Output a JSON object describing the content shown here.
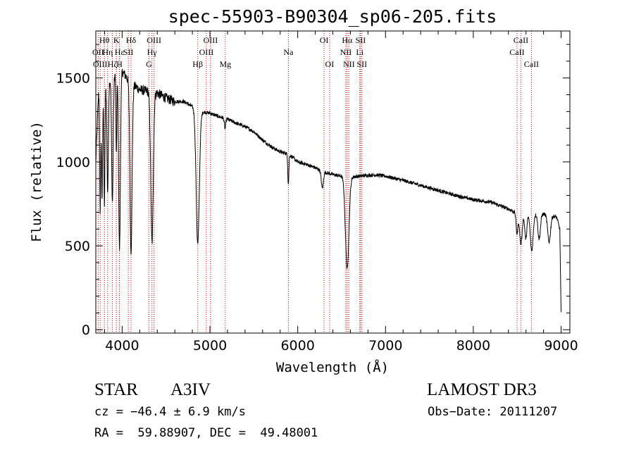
{
  "chart_data": {
    "type": "line",
    "title": "spec-55903-B90304_sp06-205.fits",
    "xlabel": "Wavelength (Å)",
    "ylabel": "Flux (relative)",
    "xlim": [
      3700,
      9100
    ],
    "ylim": [
      -20,
      1780
    ],
    "x_ticks": [
      4000,
      5000,
      6000,
      7000,
      8000,
      9000
    ],
    "y_ticks": [
      0,
      500,
      1000,
      1500
    ],
    "colors": {
      "spectrum": "#000000",
      "marker_lines": "#cc0000",
      "axes": "#000000"
    },
    "series": [
      {
        "name": "spectrum",
        "continuum": [
          [
            3700,
            1000
          ],
          [
            3730,
            1400
          ],
          [
            3800,
            1450
          ],
          [
            3900,
            1520
          ],
          [
            4000,
            1540
          ],
          [
            4100,
            1470
          ],
          [
            4200,
            1430
          ],
          [
            4300,
            1420
          ],
          [
            4400,
            1410
          ],
          [
            4500,
            1380
          ],
          [
            4600,
            1360
          ],
          [
            4700,
            1360
          ],
          [
            4800,
            1330
          ],
          [
            4900,
            1300
          ],
          [
            5000,
            1290
          ],
          [
            5100,
            1270
          ],
          [
            5200,
            1255
          ],
          [
            5300,
            1230
          ],
          [
            5400,
            1210
          ],
          [
            5500,
            1180
          ],
          [
            5600,
            1130
          ],
          [
            5700,
            1090
          ],
          [
            5800,
            1060
          ],
          [
            5900,
            1045
          ],
          [
            6000,
            1000
          ],
          [
            6100,
            985
          ],
          [
            6200,
            965
          ],
          [
            6300,
            940
          ],
          [
            6400,
            925
          ],
          [
            6500,
            915
          ],
          [
            6600,
            910
          ],
          [
            6700,
            915
          ],
          [
            6800,
            920
          ],
          [
            6900,
            922
          ],
          [
            7000,
            915
          ],
          [
            7200,
            890
          ],
          [
            7400,
            860
          ],
          [
            7600,
            830
          ],
          [
            7800,
            800
          ],
          [
            8000,
            775
          ],
          [
            8200,
            760
          ],
          [
            8400,
            720
          ],
          [
            8500,
            690
          ],
          [
            8600,
            690
          ],
          [
            8700,
            690
          ],
          [
            8800,
            690
          ],
          [
            8900,
            680
          ],
          [
            8950,
            670
          ],
          [
            8985,
            600
          ],
          [
            9000,
            100
          ]
        ],
        "absorption_lines": [
          {
            "center": 3750,
            "depth": 700,
            "width": 6
          },
          {
            "center": 3771,
            "depth": 650,
            "width": 6
          },
          {
            "center": 3798,
            "depth": 700,
            "width": 6
          },
          {
            "center": 3835,
            "depth": 650,
            "width": 8
          },
          {
            "center": 3889,
            "depth": 750,
            "width": 9
          },
          {
            "center": 3934,
            "depth": 500,
            "width": 5
          },
          {
            "center": 3970,
            "depth": 1050,
            "width": 10
          },
          {
            "center": 4101,
            "depth": 1000,
            "width": 12
          },
          {
            "center": 4340,
            "depth": 900,
            "width": 14
          },
          {
            "center": 4861,
            "depth": 800,
            "width": 18
          },
          {
            "center": 5172,
            "depth": 60,
            "width": 8
          },
          {
            "center": 5893,
            "depth": 180,
            "width": 6
          },
          {
            "center": 6280,
            "depth": 100,
            "width": 12
          },
          {
            "center": 6563,
            "depth": 550,
            "width": 20
          },
          {
            "center": 8498,
            "depth": 120,
            "width": 10
          },
          {
            "center": 8542,
            "depth": 180,
            "width": 14
          },
          {
            "center": 8598,
            "depth": 150,
            "width": 12
          },
          {
            "center": 8665,
            "depth": 220,
            "width": 16
          },
          {
            "center": 8750,
            "depth": 150,
            "width": 14
          },
          {
            "center": 8863,
            "depth": 160,
            "width": 16
          }
        ]
      }
    ],
    "line_markers": [
      {
        "wavelength": 3727,
        "label": "OII",
        "row": 2
      },
      {
        "wavelength": 3750,
        "label": "OIII",
        "row": 3
      },
      {
        "wavelength": 3798,
        "label": "Hθ",
        "row": 1
      },
      {
        "wavelength": 3835,
        "label": "Hη",
        "row": 2
      },
      {
        "wavelength": 3889,
        "label": "Hζ",
        "row": 3
      },
      {
        "wavelength": 3934,
        "label": "K",
        "row": 1
      },
      {
        "wavelength": 3970,
        "label": "Hε",
        "row": 2
      },
      {
        "wavelength": 3969,
        "label": "H",
        "row": 3
      },
      {
        "wavelength": 4070,
        "label": "SII",
        "row": 2
      },
      {
        "wavelength": 4101,
        "label": "Hδ",
        "row": 1
      },
      {
        "wavelength": 4305,
        "label": "G",
        "row": 3
      },
      {
        "wavelength": 4340,
        "label": "Hγ",
        "row": 2
      },
      {
        "wavelength": 4363,
        "label": "OIII",
        "row": 1
      },
      {
        "wavelength": 4861,
        "label": "Hβ",
        "row": 3
      },
      {
        "wavelength": 4959,
        "label": "OIII",
        "row": 2
      },
      {
        "wavelength": 5007,
        "label": "OIII",
        "row": 1
      },
      {
        "wavelength": 5175,
        "label": "Mg",
        "row": 3
      },
      {
        "wavelength": 5894,
        "label": "Na",
        "row": 2
      },
      {
        "wavelength": 6300,
        "label": "OI",
        "row": 1
      },
      {
        "wavelength": 6363,
        "label": "OI",
        "row": 3
      },
      {
        "wavelength": 6548,
        "label": "NII",
        "row": 2
      },
      {
        "wavelength": 6563,
        "label": "Hα",
        "row": 1
      },
      {
        "wavelength": 6583,
        "label": "NII",
        "row": 3
      },
      {
        "wavelength": 6707,
        "label": "Li",
        "row": 2
      },
      {
        "wavelength": 6716,
        "label": "SII",
        "row": 1
      },
      {
        "wavelength": 6731,
        "label": "SII",
        "row": 3
      },
      {
        "wavelength": 8498,
        "label": "CaII",
        "row": 2
      },
      {
        "wavelength": 8542,
        "label": "CaII",
        "row": 1
      },
      {
        "wavelength": 8662,
        "label": "CaII",
        "row": 3
      }
    ]
  },
  "info": {
    "object_class": "STAR",
    "subclass": "A3IV",
    "survey": "LAMOST DR3",
    "redshift": "cz = −46.4 ± 6.9 km/s",
    "obs_date": "Obs−Date: 20111207",
    "coordinates": "RA =  59.88907, DEC =  49.48001"
  }
}
